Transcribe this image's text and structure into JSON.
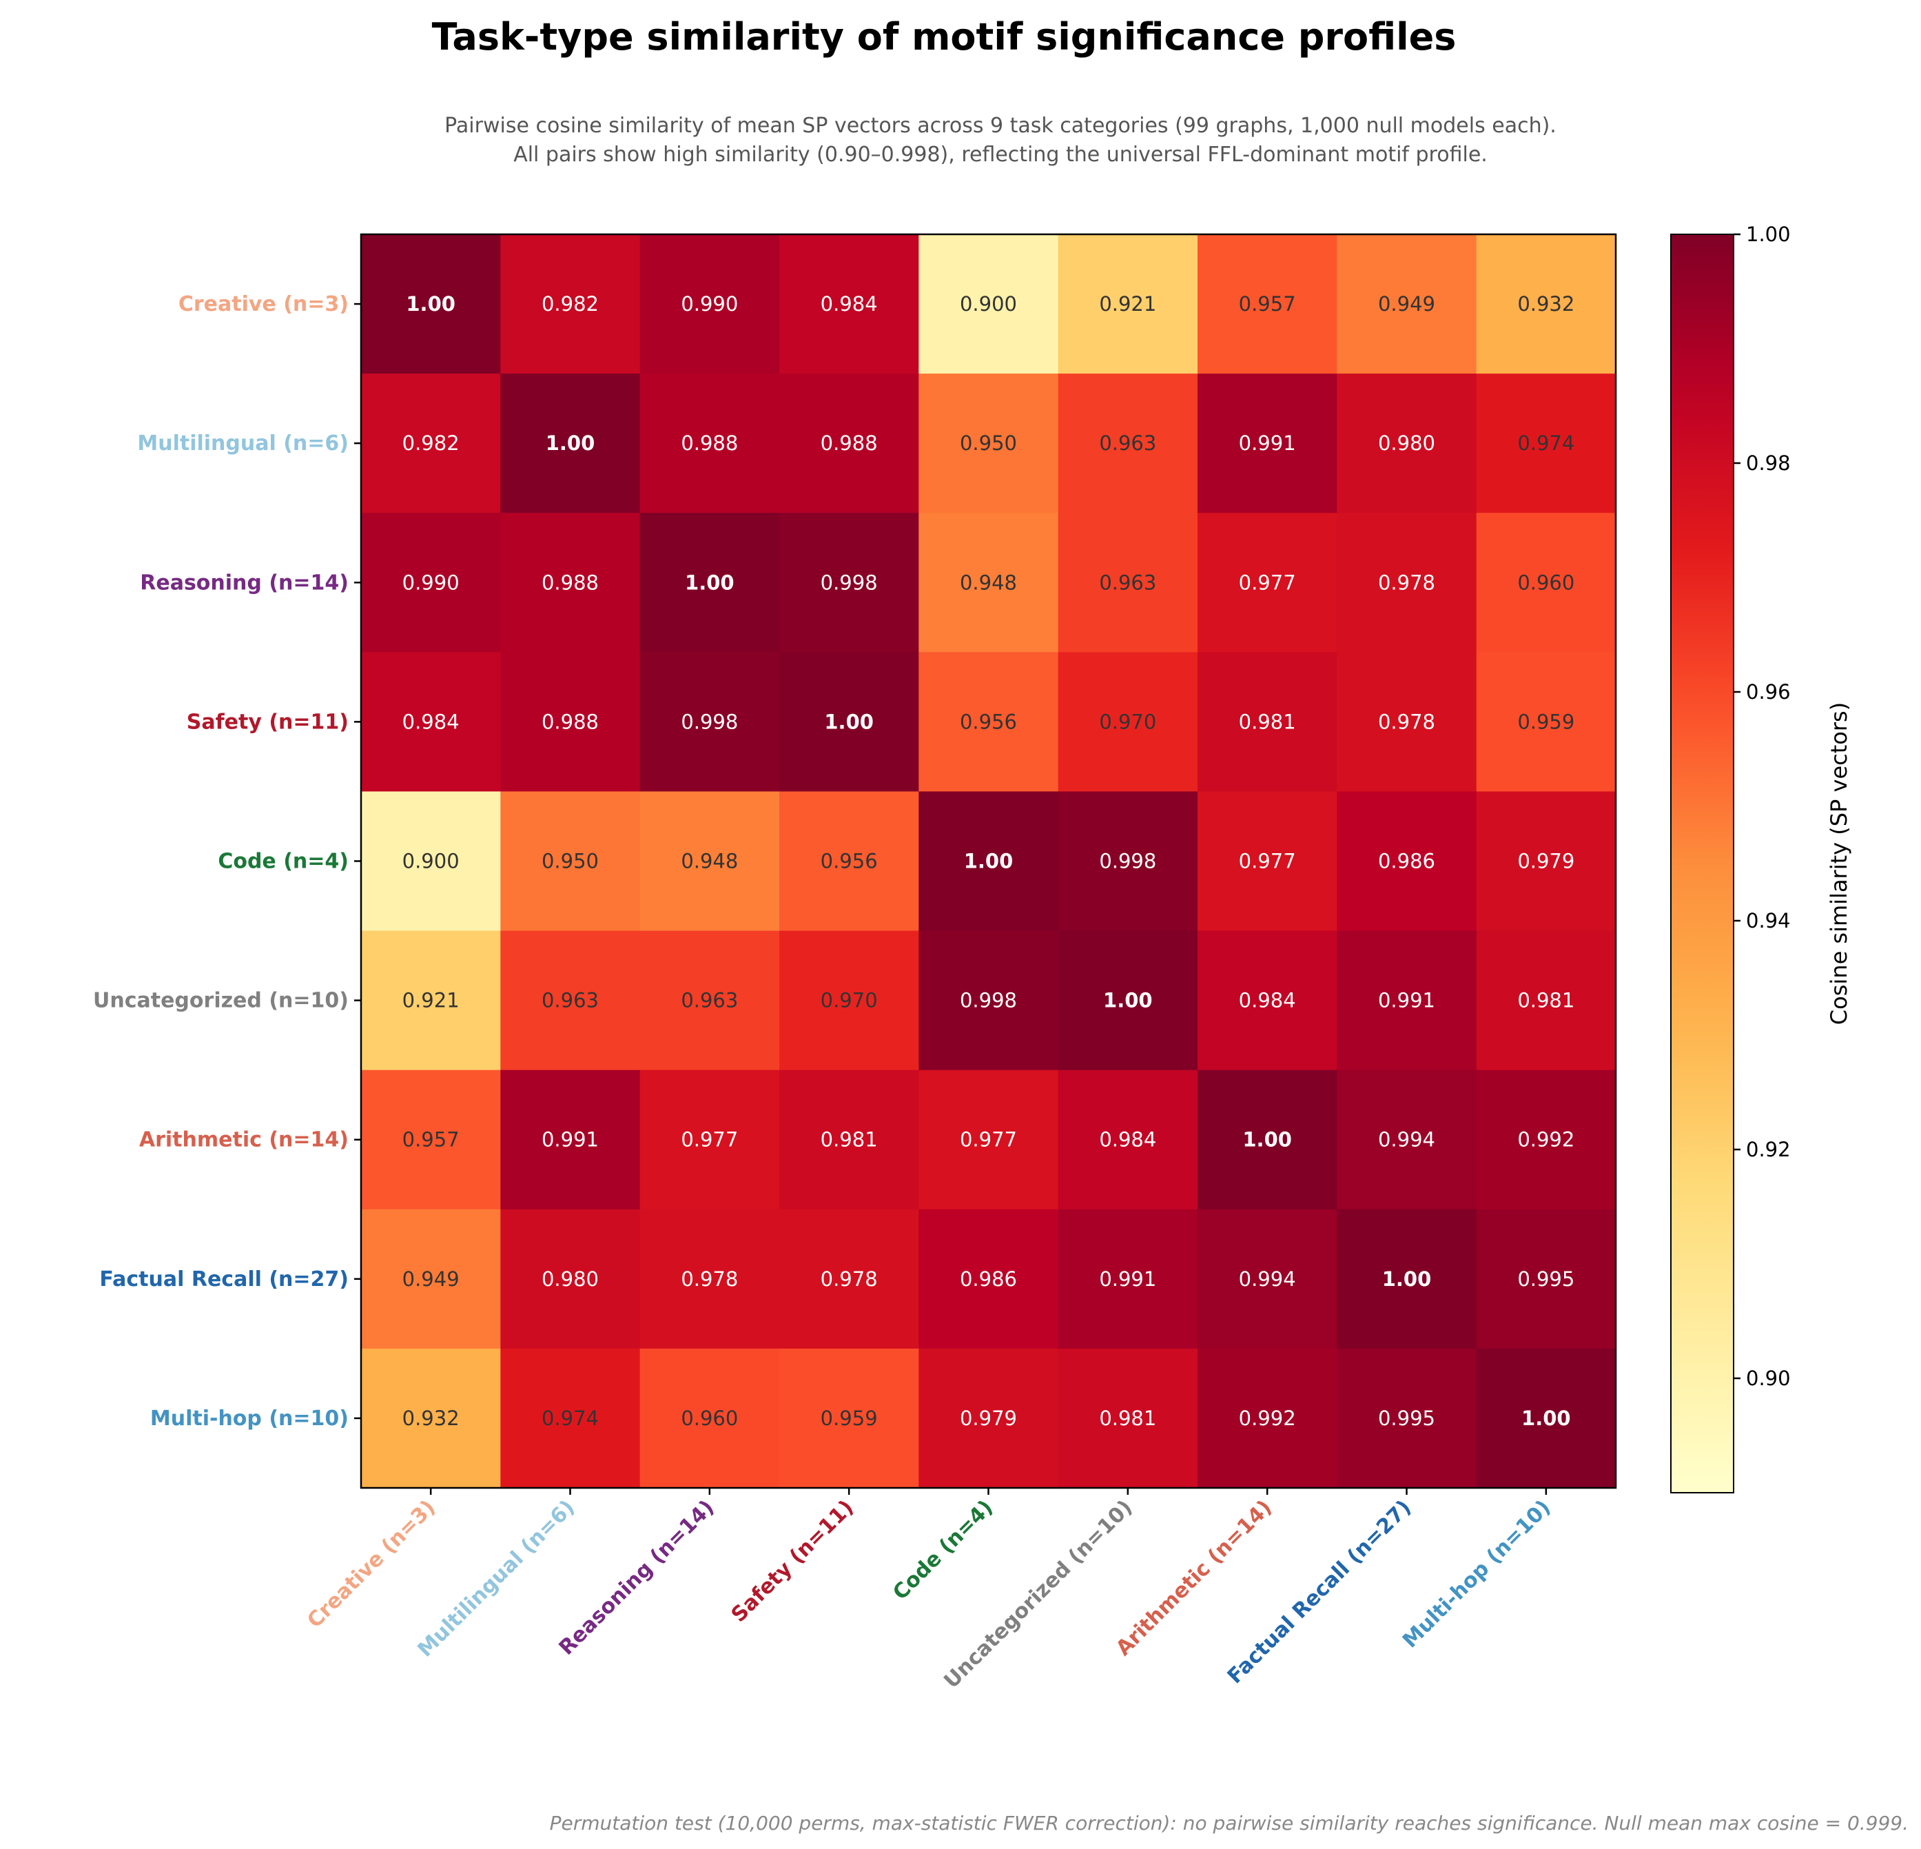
{
  "chart_data": {
    "type": "heatmap",
    "title": "Task-type similarity of motif significance profiles",
    "subtitle_lines": [
      "Pairwise cosine similarity of mean SP vectors across 9 task categories (99 graphs, 1,000 null models each).",
      "All pairs show high similarity (0.90–0.998), reflecting the universal FFL-dominant motif profile."
    ],
    "footnote": "Permutation test (10,000 perms, max-statistic FWER correction): no pairwise similarity reaches significance. Null mean max cosine = 0.999.",
    "categories": [
      "Creative (n=3)",
      "Multilingual (n=6)",
      "Reasoning (n=14)",
      "Safety (n=11)",
      "Code (n=4)",
      "Uncategorized (n=10)",
      "Arithmetic (n=14)",
      "Factual Recall (n=27)",
      "Multi-hop (n=10)"
    ],
    "category_colors": [
      "#f4a582",
      "#92c5de",
      "#762a83",
      "#b2182b",
      "#1b7837",
      "#808080",
      "#d6604d",
      "#2166ac",
      "#4393c3"
    ],
    "values": [
      [
        1.0,
        0.982,
        0.99,
        0.984,
        0.9,
        0.921,
        0.957,
        0.949,
        0.932
      ],
      [
        0.982,
        1.0,
        0.988,
        0.988,
        0.95,
        0.963,
        0.991,
        0.98,
        0.974
      ],
      [
        0.99,
        0.988,
        1.0,
        0.998,
        0.948,
        0.963,
        0.977,
        0.978,
        0.96
      ],
      [
        0.984,
        0.988,
        0.998,
        1.0,
        0.956,
        0.97,
        0.981,
        0.978,
        0.959
      ],
      [
        0.9,
        0.95,
        0.948,
        0.956,
        1.0,
        0.998,
        0.977,
        0.986,
        0.979
      ],
      [
        0.921,
        0.963,
        0.963,
        0.97,
        0.998,
        1.0,
        0.984,
        0.991,
        0.981
      ],
      [
        0.957,
        0.991,
        0.977,
        0.981,
        0.977,
        0.984,
        1.0,
        0.994,
        0.992
      ],
      [
        0.949,
        0.98,
        0.978,
        0.978,
        0.986,
        0.991,
        0.994,
        1.0,
        0.995
      ],
      [
        0.932,
        0.974,
        0.96,
        0.959,
        0.979,
        0.981,
        0.992,
        0.995,
        1.0
      ]
    ],
    "colormap": "YlOrRd",
    "vmin": 0.89,
    "vmax": 1.0,
    "colorbar": {
      "label": "Cosine similarity (SP vectors)",
      "ticks": [
        0.9,
        0.92,
        0.94,
        0.96,
        0.98,
        1.0
      ],
      "tick_labels": [
        "0.90",
        "0.92",
        "0.94",
        "0.96",
        "0.98",
        "1.00"
      ]
    }
  }
}
